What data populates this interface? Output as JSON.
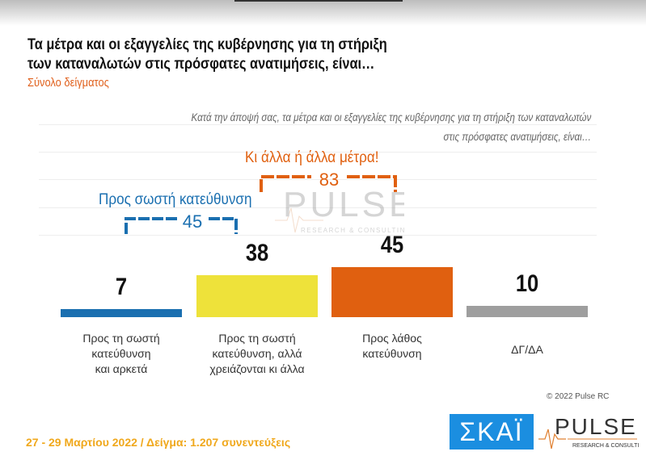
{
  "header": {
    "title_line1": "Τα μέτρα και οι εξαγγελίες της κυβέρνησης για τη στήριξη",
    "title_line2": "των καταναλωτών στις πρόσφατες ανατιμήσεις, είναι…",
    "subtitle": "Σύνολο δείγματος"
  },
  "question": {
    "line1": "Κατά την άποψή σας, τα μέτρα και οι εξαγγελίες της κυβέρνησης για τη στήριξη των καταναλωτών",
    "line2": "στις πρόσφατες ανατιμήσεις, είναι…"
  },
  "chart_data": {
    "type": "bar",
    "categories": [
      "Προς τη σωστή κατεύθυνση και αρκετά",
      "Προς τη σωστή κατεύθυνση, αλλά χρειάζονται κι άλλα",
      "Προς λάθος κατεύθυνση",
      "ΔΓ/ΔΑ"
    ],
    "category_lines": [
      [
        "Προς τη σωστή",
        "κατεύθυνση",
        "και αρκετά"
      ],
      [
        "Προς τη σωστή",
        "κατεύθυνση, αλλά",
        "χρειάζονται κι άλλα"
      ],
      [
        "Προς λάθος",
        "κατεύθυνση"
      ],
      [
        "ΔΓ/ΔΑ"
      ]
    ],
    "values": [
      7,
      38,
      45,
      10
    ],
    "value_labels": [
      "7",
      "38",
      "45",
      "10"
    ],
    "colors": [
      "#1a6fb0",
      "#eee23a",
      "#e06010",
      "#9e9e9e"
    ],
    "ylim": [
      0,
      100
    ],
    "annotations": [
      {
        "label": "Προς σωστή κατεύθυνση",
        "value": "45",
        "color": "#1a6fb0"
      },
      {
        "label": "Κι άλλα ή άλλα μέτρα!",
        "value": "83",
        "color": "#e06010"
      }
    ]
  },
  "footer": {
    "dates": "27 - 29  Μαρτίου  2022  /  Δείγμα:  1.207 συνεντεύξεις",
    "copyright": "© 2022 Pulse RC",
    "skai_logo": "ΣΚΑΪ",
    "pulse_logo": "PULSE",
    "pulse_tagline": "RESEARCH & CONSULTING"
  }
}
